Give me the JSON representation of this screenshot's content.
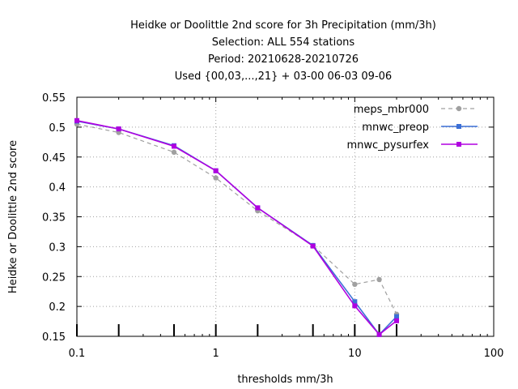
{
  "chart_data": {
    "type": "line",
    "title_lines": [
      "Heidke or Doolittle 2nd score  for 3h Precipitation (mm/3h)",
      "Selection: ALL    554 stations",
      "Period: 20210628-20210726",
      "Used {00,03,...,21} + 03-00 06-03 09-06"
    ],
    "xlabel": "thresholds mm/3h",
    "ylabel": "Heidke or Doolittle 2nd score",
    "x_scale": "log",
    "xlim": [
      0.1,
      100
    ],
    "ylim": [
      0.15,
      0.55
    ],
    "x_ticks": [
      0.1,
      1,
      10,
      100
    ],
    "x_tick_labels": [
      "0.1",
      "1",
      "10",
      "100"
    ],
    "y_ticks": [
      0.15,
      0.2,
      0.25,
      0.3,
      0.35,
      0.4,
      0.45,
      0.5,
      0.55
    ],
    "y_tick_labels": [
      "0.15",
      "0.2",
      "0.25",
      "0.3",
      "0.35",
      "0.4",
      "0.45",
      "0.5",
      "0.55"
    ],
    "grid": true,
    "legend_position": "top-right",
    "x": [
      0.1,
      0.2,
      0.5,
      1,
      2,
      5,
      10,
      15,
      20
    ],
    "series": [
      {
        "name": "meps_mbr000",
        "color": "#a0a0a0",
        "dashed": true,
        "marker": "circle",
        "values": [
          0.505,
          0.491,
          0.458,
          0.415,
          0.36,
          0.302,
          0.237,
          0.245,
          0.187
        ]
      },
      {
        "name": "mnwc_preop",
        "color": "#3b6fd6",
        "dashed": false,
        "marker": "square",
        "values": [
          0.51,
          0.497,
          0.469,
          0.427,
          0.365,
          0.302,
          0.208,
          0.153,
          0.183
        ]
      },
      {
        "name": "mnwc_pysurfex",
        "color": "#b000e0",
        "dashed": false,
        "marker": "square",
        "values": [
          0.511,
          0.497,
          0.468,
          0.427,
          0.365,
          0.301,
          0.201,
          0.153,
          0.176
        ]
      }
    ]
  }
}
